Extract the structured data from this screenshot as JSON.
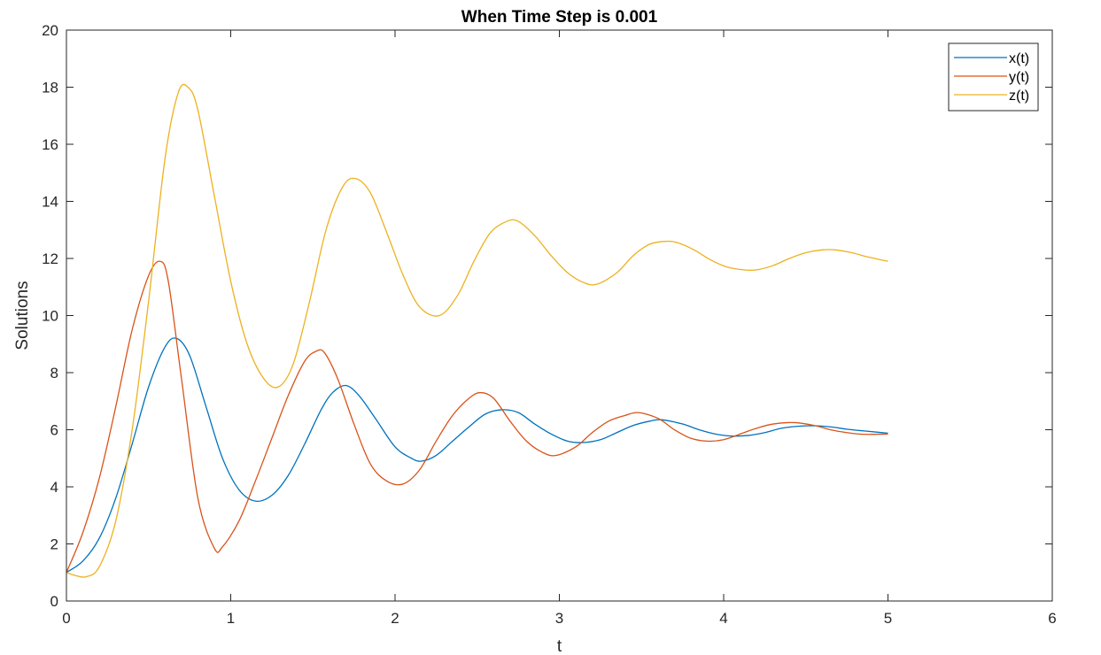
{
  "chart_data": {
    "type": "line",
    "title": "When Time Step is 0.001",
    "xlabel": "t",
    "ylabel": "Solutions",
    "xlim": [
      0,
      6
    ],
    "ylim": [
      0,
      20
    ],
    "xticks": [
      "0",
      "1",
      "2",
      "3",
      "4",
      "5",
      "6"
    ],
    "yticks": [
      "0",
      "2",
      "4",
      "6",
      "8",
      "10",
      "12",
      "14",
      "16",
      "18",
      "20"
    ],
    "grid": false,
    "legend_position": "top-right",
    "series": [
      {
        "name": "x(t)",
        "color": "#0072BD",
        "x": [
          0,
          0.1,
          0.2,
          0.3,
          0.4,
          0.5,
          0.6,
          0.67,
          0.75,
          0.85,
          0.95,
          1.05,
          1.15,
          1.25,
          1.35,
          1.45,
          1.55,
          1.62,
          1.7,
          1.78,
          1.88,
          2.0,
          2.1,
          2.16,
          2.25,
          2.35,
          2.45,
          2.55,
          2.65,
          2.75,
          2.85,
          2.95,
          3.05,
          3.14,
          3.25,
          3.35,
          3.45,
          3.55,
          3.62,
          3.75,
          3.85,
          3.95,
          4.05,
          4.15,
          4.25,
          4.35,
          4.45,
          4.55,
          4.65,
          4.75,
          4.85,
          5.0
        ],
        "y": [
          1.0,
          1.4,
          2.2,
          3.6,
          5.5,
          7.5,
          8.9,
          9.2,
          8.6,
          6.8,
          5.0,
          3.9,
          3.5,
          3.7,
          4.4,
          5.5,
          6.7,
          7.3,
          7.55,
          7.2,
          6.4,
          5.4,
          5.0,
          4.9,
          5.1,
          5.6,
          6.1,
          6.55,
          6.7,
          6.6,
          6.2,
          5.85,
          5.6,
          5.55,
          5.65,
          5.9,
          6.15,
          6.3,
          6.35,
          6.2,
          6.0,
          5.85,
          5.78,
          5.8,
          5.9,
          6.05,
          6.12,
          6.14,
          6.1,
          6.02,
          5.96,
          5.88
        ]
      },
      {
        "name": "y(t)",
        "color": "#D95319",
        "x": [
          0,
          0.1,
          0.2,
          0.3,
          0.4,
          0.5,
          0.57,
          0.62,
          0.7,
          0.8,
          0.9,
          0.95,
          1.05,
          1.15,
          1.25,
          1.35,
          1.45,
          1.52,
          1.57,
          1.65,
          1.75,
          1.85,
          1.95,
          2.05,
          2.15,
          2.25,
          2.35,
          2.45,
          2.52,
          2.6,
          2.7,
          2.8,
          2.9,
          2.98,
          3.1,
          3.2,
          3.3,
          3.4,
          3.48,
          3.6,
          3.7,
          3.8,
          3.9,
          4.0,
          4.1,
          4.2,
          4.3,
          4.43,
          4.55,
          4.65,
          4.75,
          4.85,
          5.0
        ],
        "y": [
          1.0,
          2.4,
          4.3,
          6.8,
          9.5,
          11.4,
          11.9,
          11.2,
          7.8,
          3.6,
          1.85,
          1.9,
          2.8,
          4.2,
          5.7,
          7.2,
          8.4,
          8.75,
          8.7,
          7.8,
          6.2,
          4.8,
          4.2,
          4.1,
          4.6,
          5.6,
          6.5,
          7.1,
          7.3,
          7.1,
          6.3,
          5.6,
          5.2,
          5.1,
          5.4,
          5.9,
          6.3,
          6.5,
          6.6,
          6.4,
          6.0,
          5.7,
          5.6,
          5.65,
          5.85,
          6.05,
          6.2,
          6.25,
          6.15,
          6.0,
          5.9,
          5.84,
          5.85
        ]
      },
      {
        "name": "z(t)",
        "color": "#EDB120",
        "x": [
          0,
          0.05,
          0.12,
          0.2,
          0.3,
          0.4,
          0.5,
          0.6,
          0.68,
          0.74,
          0.8,
          0.9,
          1.0,
          1.1,
          1.2,
          1.29,
          1.38,
          1.48,
          1.58,
          1.68,
          1.76,
          1.85,
          1.95,
          2.05,
          2.15,
          2.27,
          2.38,
          2.48,
          2.58,
          2.68,
          2.75,
          2.85,
          2.95,
          3.05,
          3.15,
          3.23,
          3.35,
          3.45,
          3.55,
          3.65,
          3.72,
          3.82,
          3.92,
          4.02,
          4.12,
          4.2,
          4.3,
          4.4,
          4.5,
          4.6,
          4.68,
          4.78,
          4.88,
          5.0
        ],
        "y": [
          1.0,
          0.9,
          0.85,
          1.2,
          2.8,
          6.0,
          10.5,
          15.5,
          17.8,
          18.0,
          17.2,
          14.2,
          11.2,
          9.0,
          7.8,
          7.5,
          8.3,
          10.5,
          13.0,
          14.5,
          14.8,
          14.3,
          12.9,
          11.4,
          10.3,
          10.0,
          10.7,
          11.9,
          12.9,
          13.3,
          13.3,
          12.8,
          12.1,
          11.5,
          11.15,
          11.1,
          11.5,
          12.1,
          12.5,
          12.6,
          12.55,
          12.3,
          11.95,
          11.7,
          11.6,
          11.6,
          11.75,
          12.0,
          12.2,
          12.3,
          12.3,
          12.2,
          12.05,
          11.9
        ]
      }
    ]
  }
}
